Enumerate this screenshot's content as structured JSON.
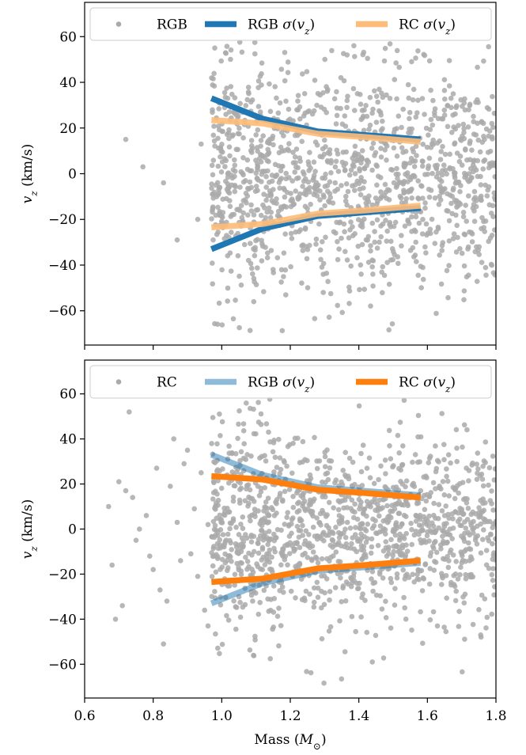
{
  "chart_data": [
    {
      "type": "scatter",
      "panel": "top",
      "xlabel": "",
      "ylabel": "v_z (km/s)",
      "ylabel_parts": {
        "symbol": "v",
        "subscript": "z",
        "unit": " (km/s)"
      },
      "xlim": [
        0.6,
        1.8
      ],
      "ylim": [
        -75,
        75
      ],
      "xticks": [
        0.6,
        0.8,
        1.0,
        1.2,
        1.4,
        1.6,
        1.8
      ],
      "yticks": [
        -60,
        -40,
        -20,
        0,
        20,
        40,
        60
      ],
      "ytick_labels": [
        "−60",
        "−40",
        "−20",
        "0",
        "20",
        "40",
        "60"
      ],
      "show_xtick_labels": false,
      "grid": false,
      "legend_position": "top",
      "legend": [
        {
          "label": "RGB",
          "kind": "marker",
          "color": "#aaaaaa"
        },
        {
          "label": "RGB σ(v_z)",
          "label_parts": {
            "name": "RGB ",
            "sigma": "σ",
            "open": "(",
            "symbol": "v",
            "subscript": "z",
            "close": ")"
          },
          "kind": "line",
          "color": "#1f77b4",
          "opacity": 1.0
        },
        {
          "label": "RC σ(v_z)",
          "label_parts": {
            "name": "RC ",
            "sigma": "σ",
            "open": "(",
            "symbol": "v",
            "subscript": "z",
            "close": ")"
          },
          "kind": "line",
          "color": "#ffbb78",
          "opacity": 1.0
        }
      ],
      "scatter": {
        "name": "RGB",
        "color": "#aaaaaa",
        "opacity": 0.85,
        "x_range": [
          0.97,
          1.8
        ],
        "sd_center": 24,
        "outliers": [
          [
            0.72,
            15
          ],
          [
            0.77,
            3
          ],
          [
            0.83,
            -4
          ],
          [
            0.87,
            -29
          ],
          [
            0.93,
            -20
          ],
          [
            0.94,
            13
          ],
          [
            1.83,
            22
          ]
        ]
      },
      "series": [
        {
          "name": "RGB σ(v_z)",
          "color": "#1f77b4",
          "opacity": 1.0,
          "x": [
            0.97,
            1.12,
            1.28,
            1.58
          ],
          "y_upper": [
            33,
            24,
            18.5,
            15
          ],
          "y_lower": [
            -33,
            -24,
            -18.5,
            -15
          ],
          "z": 2
        },
        {
          "name": "RC σ(v_z)",
          "color": "#ffbb78",
          "opacity": 0.9,
          "x": [
            0.97,
            1.12,
            1.28,
            1.42,
            1.58
          ],
          "y_upper": [
            23.5,
            22,
            17.5,
            16,
            14
          ],
          "y_lower": [
            -23.5,
            -22,
            -17.5,
            -16,
            -14
          ],
          "z": 3
        }
      ]
    },
    {
      "type": "scatter",
      "panel": "bottom",
      "xlabel": "Mass (M⊙)",
      "xlabel_parts": {
        "name": "Mass (",
        "symbol": "M",
        "subscript": "⊙",
        "close": ")"
      },
      "ylabel": "v_z (km/s)",
      "ylabel_parts": {
        "symbol": "v",
        "subscript": "z",
        "unit": " (km/s)"
      },
      "xlim": [
        0.6,
        1.8
      ],
      "ylim": [
        -75,
        75
      ],
      "xticks": [
        0.6,
        0.8,
        1.0,
        1.2,
        1.4,
        1.6,
        1.8
      ],
      "xtick_labels": [
        "0.6",
        "0.8",
        "1.0",
        "1.2",
        "1.4",
        "1.6",
        "1.8"
      ],
      "yticks": [
        -60,
        -40,
        -20,
        0,
        20,
        40,
        60
      ],
      "ytick_labels": [
        "−60",
        "−40",
        "−20",
        "0",
        "20",
        "40",
        "60"
      ],
      "show_xtick_labels": true,
      "grid": false,
      "legend_position": "top",
      "legend": [
        {
          "label": "RC",
          "kind": "marker",
          "color": "#aaaaaa"
        },
        {
          "label": "RGB σ(v_z)",
          "label_parts": {
            "name": "RGB ",
            "sigma": "σ",
            "open": "(",
            "symbol": "v",
            "subscript": "z",
            "close": ")"
          },
          "kind": "line",
          "color": "#1f77b4",
          "opacity": 0.5
        },
        {
          "label": "RC σ(v_z)",
          "label_parts": {
            "name": "RC ",
            "sigma": "σ",
            "open": "(",
            "symbol": "v",
            "subscript": "z",
            "close": ")"
          },
          "kind": "line",
          "color": "#ff7f0e",
          "opacity": 1.0
        }
      ],
      "scatter": {
        "name": "RC",
        "color": "#aaaaaa",
        "opacity": 0.85,
        "x_range": [
          0.97,
          1.8
        ],
        "sd_center": 21,
        "outliers": [
          [
            0.67,
            10
          ],
          [
            0.68,
            -16
          ],
          [
            0.69,
            -40
          ],
          [
            0.7,
            21
          ],
          [
            0.71,
            -34
          ],
          [
            0.72,
            17
          ],
          [
            0.73,
            52
          ],
          [
            0.74,
            14
          ],
          [
            0.75,
            -5
          ],
          [
            0.76,
            0
          ],
          [
            0.78,
            6
          ],
          [
            0.79,
            -12
          ],
          [
            0.8,
            -18
          ],
          [
            0.81,
            27
          ],
          [
            0.82,
            -27
          ],
          [
            0.83,
            -51
          ],
          [
            0.84,
            -32
          ],
          [
            0.85,
            19
          ],
          [
            0.86,
            40
          ],
          [
            0.87,
            3
          ],
          [
            0.88,
            -14
          ],
          [
            0.89,
            29
          ],
          [
            0.9,
            35
          ],
          [
            0.91,
            -11
          ],
          [
            0.92,
            9
          ],
          [
            0.93,
            -21
          ],
          [
            0.94,
            25
          ],
          [
            0.95,
            -36
          ],
          [
            0.96,
            -43
          ],
          [
            0.96,
            2
          ]
        ]
      },
      "series": [
        {
          "name": "RGB σ(v_z)",
          "color": "#1f77b4",
          "opacity": 0.5,
          "x": [
            0.97,
            1.12,
            1.28,
            1.58
          ],
          "y_upper": [
            33,
            24,
            18.5,
            15
          ],
          "y_lower": [
            -33,
            -24,
            -18.5,
            -15
          ],
          "z": 2
        },
        {
          "name": "RC σ(v_z)",
          "color": "#ff7f0e",
          "opacity": 1.0,
          "x": [
            0.97,
            1.12,
            1.28,
            1.42,
            1.58
          ],
          "y_upper": [
            23.5,
            22,
            17.5,
            16,
            14
          ],
          "y_lower": [
            -23.5,
            -22,
            -17.5,
            -16,
            -14
          ],
          "z": 3
        }
      ]
    }
  ]
}
